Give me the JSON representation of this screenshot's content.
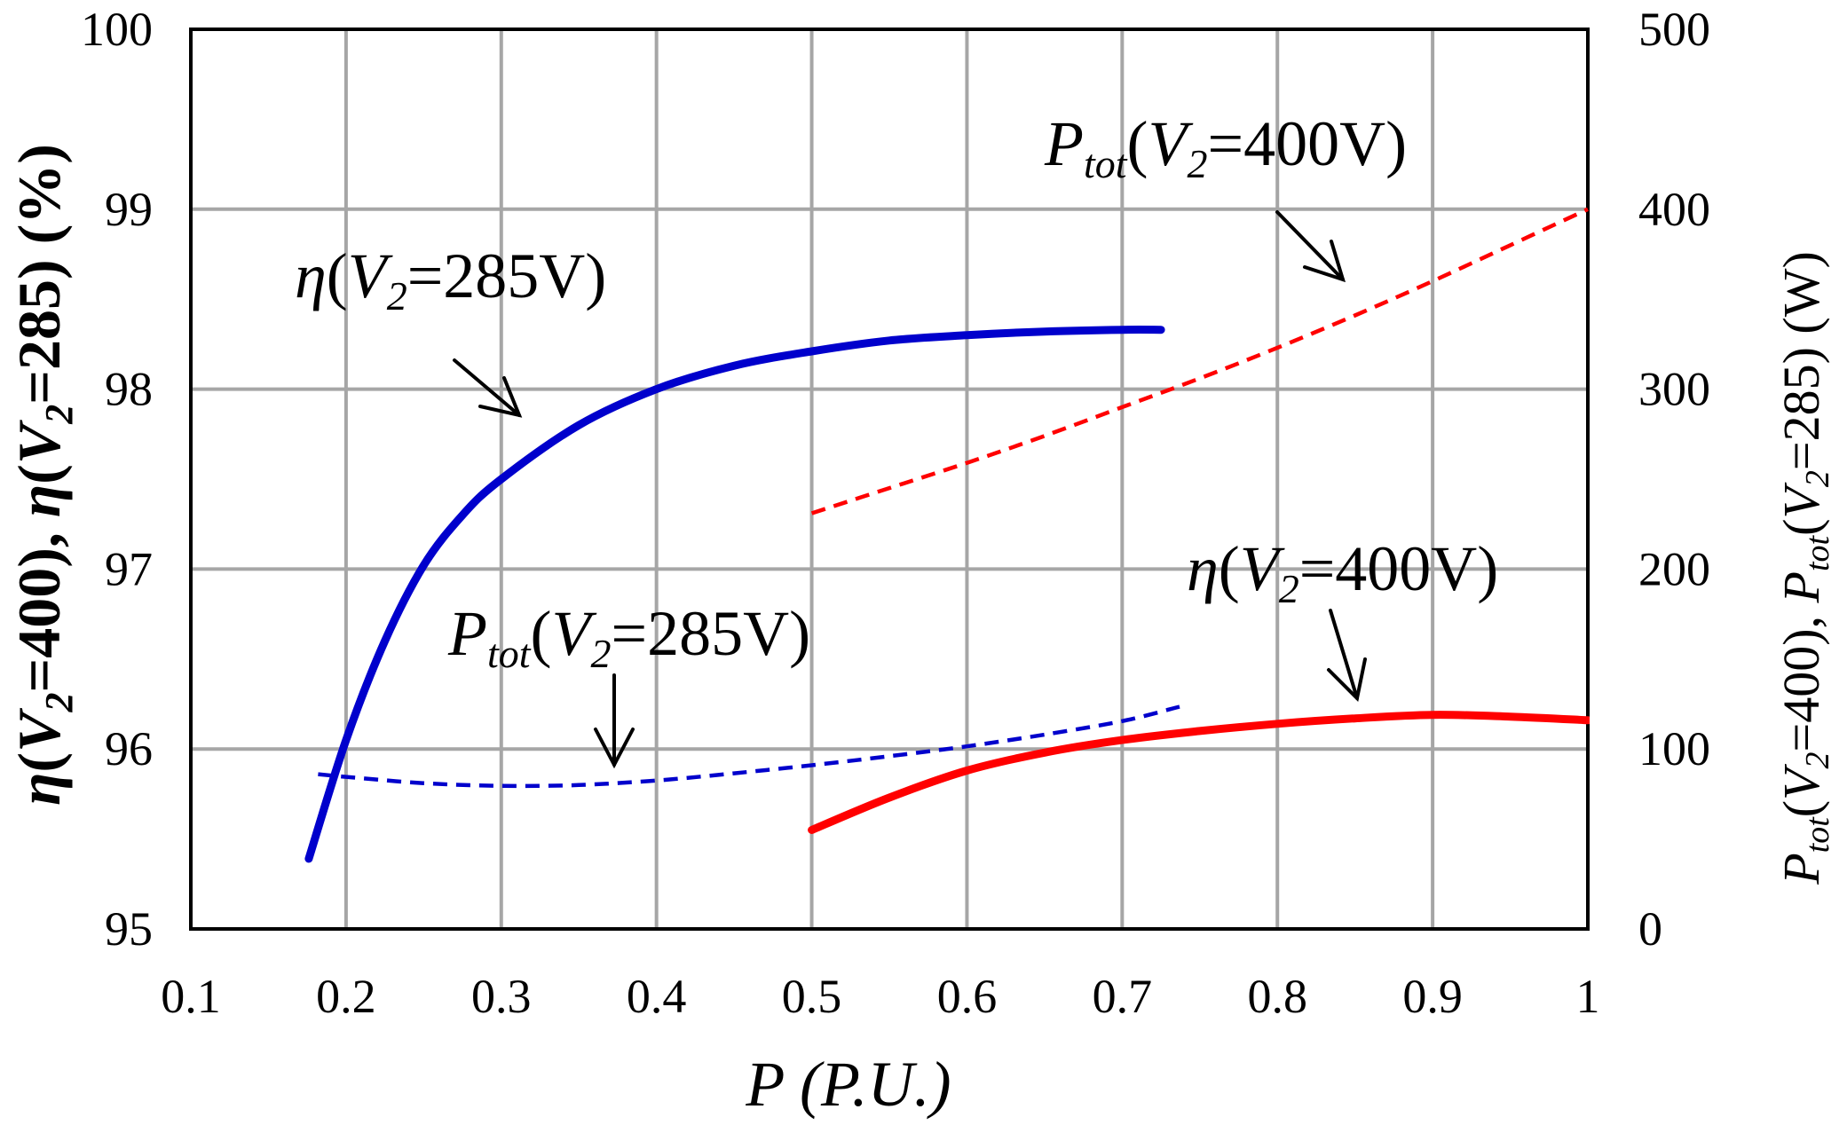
{
  "chart_data": {
    "type": "line",
    "xlim": [
      0.1,
      1
    ],
    "ylim": [
      95,
      100
    ],
    "y2lim": [
      0,
      500
    ],
    "grid": true,
    "xticks": [
      "0.1",
      "0.2",
      "0.3",
      "0.4",
      "0.5",
      "0.6",
      "0.7",
      "0.8",
      "0.9",
      "1"
    ],
    "yticks": [
      "95",
      "96",
      "97",
      "98",
      "99",
      "100"
    ],
    "y2ticks": [
      "0",
      "100",
      "200",
      "300",
      "400",
      "500"
    ],
    "xlabel": "P (P.U.)",
    "ylabel": [
      "η",
      "(",
      "V",
      "2",
      "=400), ",
      "η",
      "(",
      "V",
      "2",
      "=285) (%)"
    ],
    "y2label": [
      "P",
      "tot",
      "(",
      "V",
      "2",
      "=400), ",
      "P",
      "tot",
      "(",
      "V",
      "2",
      "=285) (W)"
    ],
    "series": [
      {
        "label": [
          "η",
          "(",
          "V",
          "2",
          "=285V)"
        ],
        "y2": false,
        "dashed": false,
        "color": "#0000CC",
        "x": [
          0.176,
          0.2,
          0.225,
          0.25,
          0.275,
          0.3,
          0.35,
          0.4,
          0.45,
          0.5,
          0.55,
          0.6,
          0.65,
          0.7,
          0.725
        ],
        "y": [
          95.39,
          96.05,
          96.6,
          97.02,
          97.3,
          97.5,
          97.8,
          98.0,
          98.13,
          98.21,
          98.27,
          98.3,
          98.32,
          98.33,
          98.33
        ]
      },
      {
        "label": [
          "P",
          "tot",
          "(",
          "V",
          "2",
          "=285V)"
        ],
        "y2": true,
        "dashed": true,
        "color": "#0000CC",
        "x": [
          0.182,
          0.2,
          0.25,
          0.3,
          0.35,
          0.4,
          0.45,
          0.5,
          0.55,
          0.6,
          0.65,
          0.7,
          0.737
        ],
        "y": [
          86,
          84.5,
          81,
          79.5,
          80,
          82.5,
          86.5,
          91,
          96,
          101.5,
          108,
          115.5,
          123.5
        ]
      },
      {
        "label": [
          "P",
          "tot",
          "(",
          "V",
          "2",
          "=400V)"
        ],
        "y2": true,
        "dashed": true,
        "color": "#FF0000",
        "x": [
          0.5,
          0.55,
          0.6,
          0.65,
          0.7,
          0.75,
          0.8,
          0.85,
          0.9,
          0.95,
          1.0
        ],
        "y": [
          231,
          245,
          259,
          274,
          290,
          306,
          323,
          341,
          360,
          380,
          400
        ]
      },
      {
        "label": [
          "η",
          "(",
          "V",
          "2",
          "=400V)"
        ],
        "y2": false,
        "dashed": false,
        "color": "#FF0000",
        "x": [
          0.5,
          0.55,
          0.6,
          0.65,
          0.7,
          0.75,
          0.8,
          0.85,
          0.9,
          0.95,
          1.0
        ],
        "y": [
          95.55,
          95.73,
          95.88,
          95.98,
          96.05,
          96.1,
          96.14,
          96.17,
          96.19,
          96.18,
          96.16
        ]
      }
    ]
  }
}
